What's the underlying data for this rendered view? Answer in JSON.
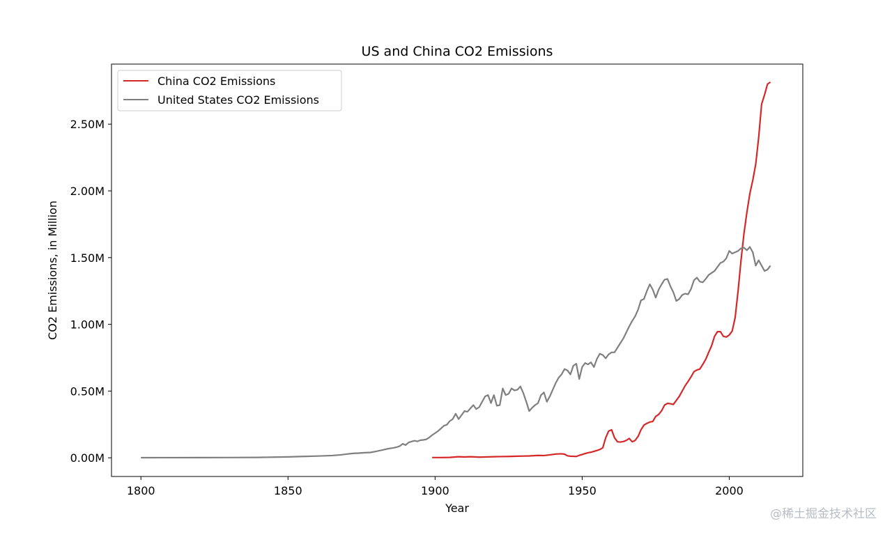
{
  "chart_data": {
    "type": "line",
    "title": "US and China CO2 Emissions",
    "xlabel": "Year",
    "ylabel": "CO2 Emissions, in Million",
    "xlim": [
      1790,
      2025
    ],
    "ylim": [
      -140000,
      2950000
    ],
    "xticks": [
      1800,
      1850,
      1900,
      1950,
      2000
    ],
    "xtick_labels": [
      "1800",
      "1850",
      "1900",
      "1950",
      "2000"
    ],
    "yticks": [
      0,
      500000,
      1000000,
      1500000,
      2000000,
      2500000
    ],
    "ytick_labels": [
      "0.00M",
      "0.50M",
      "1.00M",
      "1.50M",
      "2.00M",
      "2.50M"
    ],
    "legend_position": "top-left",
    "series": [
      {
        "name": "China CO2 Emissions",
        "color": "#d62728",
        "x": [
          1899,
          1902,
          1905,
          1908,
          1910,
          1912,
          1915,
          1918,
          1920,
          1922,
          1925,
          1928,
          1930,
          1932,
          1935,
          1937,
          1939,
          1941,
          1943,
          1944,
          1945,
          1946,
          1947,
          1948,
          1949,
          1950,
          1951,
          1952,
          1953,
          1954,
          1955,
          1956,
          1957,
          1958,
          1959,
          1960,
          1961,
          1962,
          1963,
          1964,
          1965,
          1966,
          1967,
          1968,
          1969,
          1970,
          1971,
          1972,
          1973,
          1974,
          1975,
          1976,
          1977,
          1978,
          1979,
          1980,
          1981,
          1982,
          1983,
          1984,
          1985,
          1986,
          1987,
          1988,
          1989,
          1990,
          1991,
          1992,
          1993,
          1994,
          1995,
          1996,
          1997,
          1998,
          1999,
          2000,
          2001,
          2002,
          2003,
          2004,
          2005,
          2006,
          2007,
          2008,
          2009,
          2010,
          2011,
          2012,
          2013,
          2014
        ],
        "values": [
          2000,
          2000,
          3000,
          8000,
          6000,
          8000,
          5000,
          7000,
          8000,
          9000,
          10000,
          12000,
          13000,
          14000,
          18000,
          17000,
          22000,
          28000,
          30000,
          27000,
          15000,
          12000,
          11000,
          10000,
          18000,
          25000,
          32000,
          38000,
          42000,
          48000,
          55000,
          62000,
          75000,
          150000,
          200000,
          210000,
          150000,
          120000,
          118000,
          122000,
          130000,
          145000,
          120000,
          130000,
          160000,
          210000,
          245000,
          258000,
          268000,
          272000,
          310000,
          325000,
          352000,
          395000,
          408000,
          405000,
          400000,
          430000,
          460000,
          500000,
          540000,
          572000,
          606000,
          645000,
          658000,
          665000,
          700000,
          738000,
          790000,
          840000,
          910000,
          945000,
          945000,
          910000,
          905000,
          920000,
          950000,
          1050000,
          1250000,
          1480000,
          1680000,
          1840000,
          1980000,
          2080000,
          2200000,
          2400000,
          2650000,
          2720000,
          2800000,
          2815000
        ]
      },
      {
        "name": "United States CO2 Emissions",
        "color": "#7f7f7f",
        "x": [
          1800,
          1810,
          1820,
          1830,
          1840,
          1845,
          1850,
          1855,
          1860,
          1865,
          1868,
          1870,
          1872,
          1874,
          1876,
          1878,
          1880,
          1882,
          1884,
          1886,
          1887,
          1888,
          1889,
          1890,
          1891,
          1892,
          1893,
          1894,
          1895,
          1896,
          1897,
          1898,
          1899,
          1900,
          1901,
          1902,
          1903,
          1904,
          1905,
          1906,
          1907,
          1908,
          1909,
          1910,
          1911,
          1912,
          1913,
          1914,
          1915,
          1916,
          1917,
          1918,
          1919,
          1920,
          1921,
          1922,
          1923,
          1924,
          1925,
          1926,
          1927,
          1928,
          1929,
          1930,
          1931,
          1932,
          1933,
          1934,
          1935,
          1936,
          1937,
          1938,
          1939,
          1940,
          1941,
          1942,
          1943,
          1944,
          1945,
          1946,
          1947,
          1948,
          1949,
          1950,
          1951,
          1952,
          1953,
          1954,
          1955,
          1956,
          1957,
          1958,
          1959,
          1960,
          1961,
          1962,
          1963,
          1964,
          1965,
          1966,
          1967,
          1968,
          1969,
          1970,
          1971,
          1972,
          1973,
          1974,
          1975,
          1976,
          1977,
          1978,
          1979,
          1980,
          1981,
          1982,
          1983,
          1984,
          1985,
          1986,
          1987,
          1988,
          1989,
          1990,
          1991,
          1992,
          1993,
          1994,
          1995,
          1996,
          1997,
          1998,
          1999,
          2000,
          2001,
          2002,
          2003,
          2004,
          2005,
          2006,
          2007,
          2008,
          2009,
          2010,
          2011,
          2012,
          2013,
          2014
        ],
        "values": [
          1000,
          1200,
          1500,
          2000,
          3000,
          5000,
          7000,
          10000,
          13000,
          17000,
          22000,
          28000,
          33000,
          35000,
          38000,
          40000,
          48000,
          58000,
          68000,
          75000,
          80000,
          88000,
          105000,
          95000,
          115000,
          122000,
          128000,
          123000,
          132000,
          134000,
          138000,
          152000,
          170000,
          185000,
          200000,
          220000,
          240000,
          248000,
          275000,
          290000,
          330000,
          290000,
          320000,
          350000,
          345000,
          370000,
          395000,
          365000,
          380000,
          420000,
          460000,
          470000,
          410000,
          470000,
          390000,
          395000,
          520000,
          470000,
          480000,
          520000,
          505000,
          510000,
          535000,
          485000,
          420000,
          350000,
          375000,
          395000,
          410000,
          470000,
          490000,
          420000,
          460000,
          510000,
          560000,
          600000,
          625000,
          665000,
          655000,
          625000,
          690000,
          705000,
          590000,
          680000,
          710000,
          700000,
          715000,
          680000,
          740000,
          780000,
          770000,
          745000,
          775000,
          790000,
          790000,
          825000,
          860000,
          895000,
          940000,
          985000,
          1025000,
          1060000,
          1110000,
          1180000,
          1190000,
          1250000,
          1300000,
          1260000,
          1200000,
          1260000,
          1300000,
          1335000,
          1340000,
          1285000,
          1240000,
          1175000,
          1190000,
          1220000,
          1230000,
          1225000,
          1265000,
          1330000,
          1350000,
          1320000,
          1315000,
          1340000,
          1370000,
          1385000,
          1400000,
          1430000,
          1460000,
          1470000,
          1495000,
          1550000,
          1530000,
          1540000,
          1550000,
          1570000,
          1575000,
          1555000,
          1580000,
          1540000,
          1440000,
          1480000,
          1440000,
          1400000,
          1410000,
          1440000
        ]
      }
    ]
  },
  "watermark": "@稀土掘金技术社区"
}
